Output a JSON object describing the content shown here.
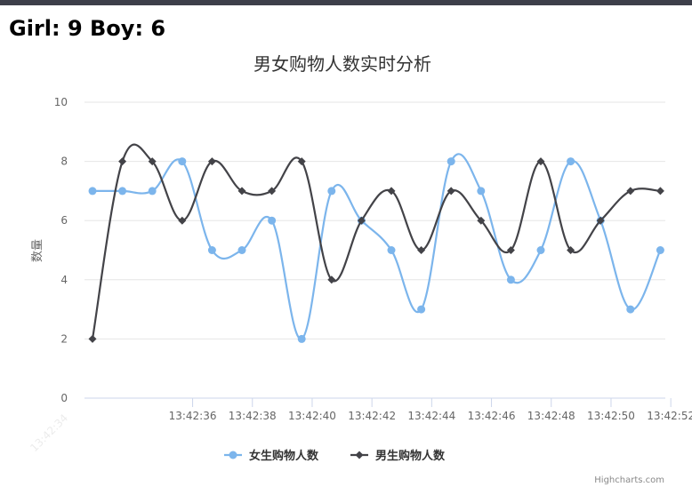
{
  "header": {
    "girl_label": "Girl:",
    "girl_count": "9",
    "boy_label": "Boy:",
    "boy_count": "6"
  },
  "chart_data": {
    "type": "line",
    "title": "男女购物人数实时分析",
    "ylabel": "数量",
    "ylim": [
      0,
      10
    ],
    "yticks": [
      0,
      2,
      4,
      6,
      8,
      10
    ],
    "xticks": [
      "13:42:34",
      "13:42:36",
      "13:42:38",
      "13:42:40",
      "13:42:42",
      "13:42:44",
      "13:42:46",
      "13:42:48",
      "13:42:50",
      "13:42:52"
    ],
    "grid": true,
    "legend_position": "bottom-center",
    "series": [
      {
        "name": "女生购物人数",
        "color": "#7cb5ec",
        "marker": "circle",
        "values": [
          7,
          7,
          7,
          8,
          5,
          5,
          6,
          2,
          7,
          6,
          5,
          3,
          8,
          7,
          4,
          5,
          8,
          6,
          3,
          5
        ]
      },
      {
        "name": "男生购物人数",
        "color": "#434348",
        "marker": "diamond",
        "values": [
          2,
          8,
          8,
          6,
          8,
          7,
          7,
          8,
          4,
          6,
          7,
          5,
          7,
          6,
          5,
          8,
          5,
          6,
          7,
          7
        ]
      }
    ],
    "credits": "Highcharts.com"
  }
}
